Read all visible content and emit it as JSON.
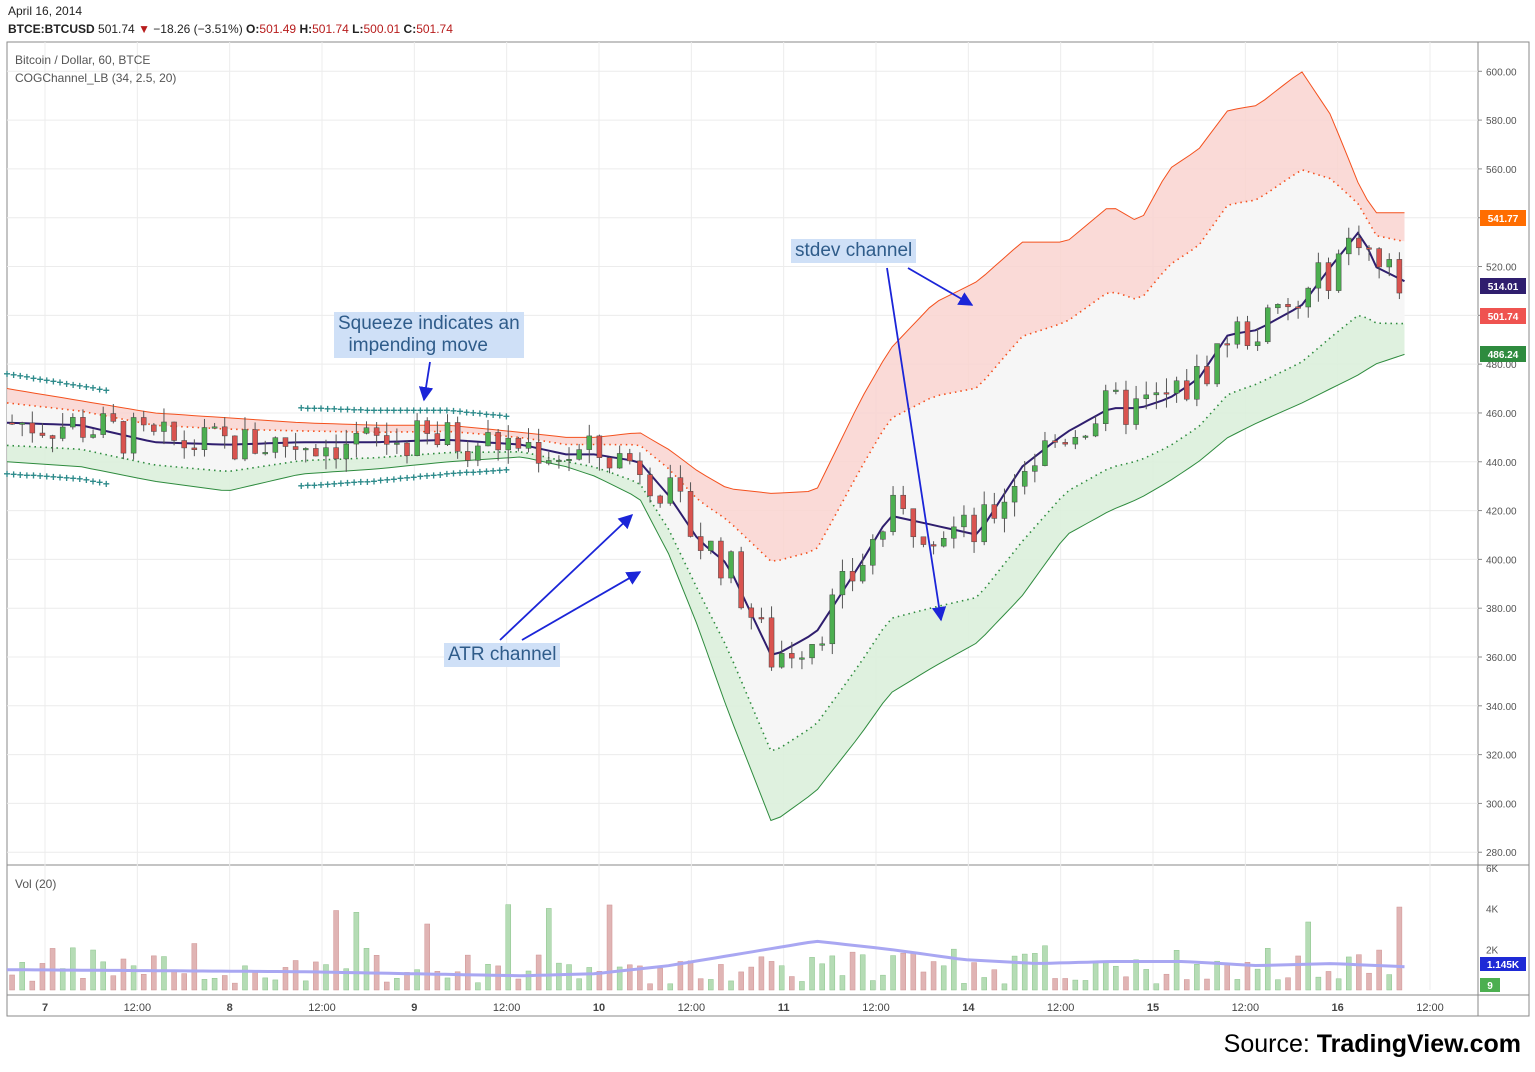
{
  "header": {
    "date": "April 16, 2014",
    "symbol": "BTCE:BTCUSD",
    "last": "501.74",
    "change": "−18.26 (−3.51%)",
    "open_label": "O:",
    "open": "501.49",
    "high_label": "H:",
    "high": "501.74",
    "low_label": "L:",
    "low": "500.01",
    "close_label": "C:",
    "close": "501.74"
  },
  "legend": {
    "title": "Bitcoin / Dollar, 60, BTCE",
    "indicator": "COGChannel_LB (34, 2.5, 20)",
    "volume": "Vol (20)"
  },
  "annotations": {
    "squeeze": "Squeeze indicates an\n  impending move",
    "atr": "ATR channel",
    "stdev": "stdev channel"
  },
  "source": {
    "prefix": "Source: ",
    "brand": "TradingView.com"
  },
  "colors": {
    "up": "#4caf50",
    "down": "#d9534f",
    "basis": "#2f1e6e",
    "upper_band": "#f4511e",
    "lower_band": "#2e8b3e",
    "upper_fill": "#f9d3d0",
    "lower_fill": "#dcefdc",
    "arrow": "#1b25d8",
    "volume_ma": "#a9a7f2"
  },
  "chart_data": {
    "type": "candlestick",
    "title": "Bitcoin / Dollar, 60, BTCE",
    "price_axis": {
      "ticks": [
        "600.00",
        "580.00",
        "560.00",
        "540.00",
        "520.00",
        "500.00",
        "480.00",
        "460.00",
        "440.00",
        "420.00",
        "400.00",
        "380.00",
        "360.00",
        "340.00",
        "320.00",
        "300.00",
        "280.00"
      ],
      "range": [
        276,
        612
      ]
    },
    "time_axis": {
      "ticks": [
        "7",
        "12:00",
        "8",
        "12:00",
        "9",
        "12:00",
        "10",
        "12:00",
        "11",
        "12:00",
        "14",
        "12:00",
        "15",
        "12:00",
        "16",
        "12:00"
      ]
    },
    "price_labels": [
      {
        "value": "541.77",
        "color": "#ff6d00"
      },
      {
        "value": "514.01",
        "color": "#2f1e6e"
      },
      {
        "value": "501.74",
        "color": "#ef5350"
      },
      {
        "value": "486.24",
        "color": "#2e8b3e"
      }
    ],
    "volume_axis": {
      "ticks": [
        "6K",
        "4K",
        "2K"
      ],
      "range": [
        0,
        6000
      ]
    },
    "volume_labels": [
      {
        "value": "1.145K",
        "color": "#1e2ad6"
      },
      {
        "value": "9",
        "color": "#4caf50"
      }
    ],
    "series": [
      {
        "name": "Basis",
        "x": [
          0,
          0.05,
          0.1,
          0.15,
          0.2,
          0.25,
          0.3,
          0.35,
          0.38,
          0.4,
          0.43,
          0.45,
          0.47,
          0.49,
          0.52,
          0.55,
          0.58,
          0.6,
          0.63,
          0.66,
          0.69,
          0.72,
          0.75,
          0.77,
          0.79,
          0.81,
          0.83,
          0.85,
          0.88,
          0.9,
          0.92,
          0.93,
          0.95
        ],
        "y": [
          456,
          455,
          448,
          447,
          448,
          448,
          449,
          447,
          443,
          443,
          440,
          426,
          408,
          398,
          360,
          370,
          398,
          418,
          414,
          410,
          438,
          452,
          462,
          462,
          466,
          474,
          492,
          494,
          504,
          520,
          535,
          520,
          514
        ]
      },
      {
        "name": "Upper stdev",
        "x": [
          0,
          0.05,
          0.1,
          0.15,
          0.2,
          0.25,
          0.3,
          0.35,
          0.38,
          0.4,
          0.43,
          0.45,
          0.47,
          0.49,
          0.52,
          0.55,
          0.58,
          0.6,
          0.63,
          0.66,
          0.69,
          0.72,
          0.75,
          0.77,
          0.79,
          0.81,
          0.83,
          0.85,
          0.88,
          0.9,
          0.92,
          0.93,
          0.95
        ],
        "y": [
          470,
          465,
          460,
          458,
          456,
          455,
          455,
          452,
          450,
          450,
          452,
          445,
          436,
          429,
          427,
          428,
          465,
          486,
          505,
          514,
          530,
          530,
          545,
          538,
          560,
          568,
          584,
          586,
          600,
          582,
          552,
          542,
          542
        ]
      },
      {
        "name": "Lower stdev",
        "x": [
          0,
          0.05,
          0.1,
          0.15,
          0.2,
          0.25,
          0.3,
          0.35,
          0.38,
          0.4,
          0.43,
          0.45,
          0.47,
          0.49,
          0.52,
          0.55,
          0.58,
          0.6,
          0.63,
          0.66,
          0.69,
          0.72,
          0.75,
          0.77,
          0.79,
          0.81,
          0.83,
          0.85,
          0.88,
          0.9,
          0.92,
          0.93,
          0.95
        ],
        "y": [
          440,
          438,
          432,
          428,
          435,
          437,
          440,
          442,
          438,
          434,
          425,
          402,
          372,
          338,
          292,
          305,
          328,
          345,
          356,
          366,
          385,
          410,
          420,
          425,
          432,
          440,
          450,
          456,
          464,
          470,
          476,
          480,
          484
        ]
      },
      {
        "name": "Volume MA",
        "x": [
          0,
          0.2,
          0.35,
          0.4,
          0.45,
          0.5,
          0.55,
          0.6,
          0.65,
          0.7,
          0.75,
          0.8,
          0.85,
          0.9,
          0.95
        ],
        "y": [
          1000,
          900,
          700,
          800,
          1200,
          1800,
          2400,
          2000,
          1500,
          1300,
          1400,
          1400,
          1200,
          1300,
          1145
        ]
      }
    ]
  }
}
